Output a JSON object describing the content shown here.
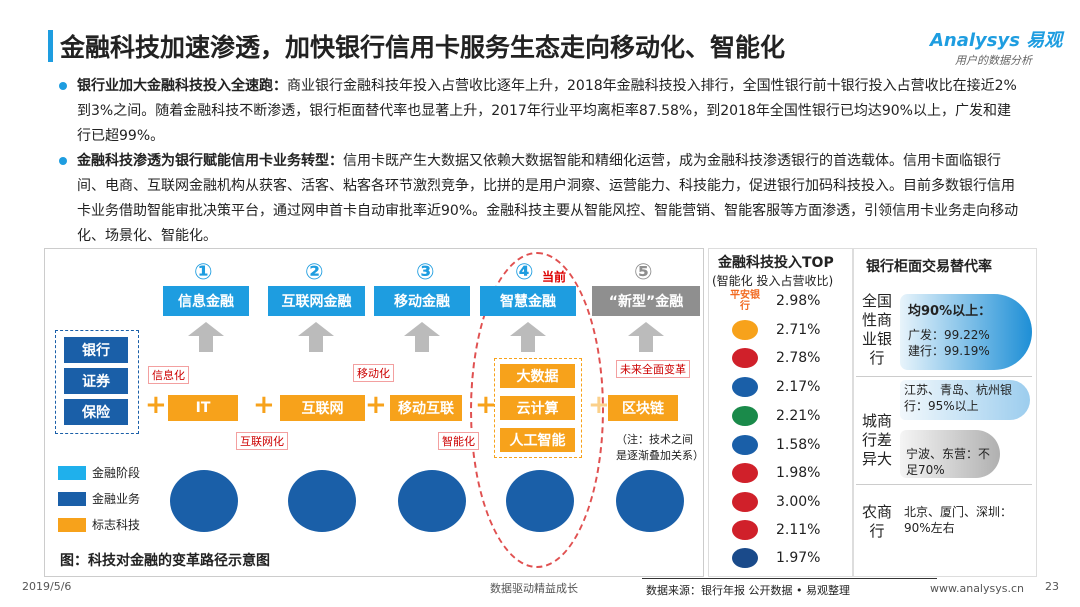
{
  "header": {
    "title": "金融科技加速渗透，加快银行信用卡服务生态走向移动化、智能化",
    "brand": "Analysys",
    "brand_cn": "易观",
    "tagline": "用户的数据分析"
  },
  "bullets": [
    {
      "lead": "银行业加大金融科技投入全速跑：",
      "text": "商业银行金融科技年投入占营收比逐年上升，2018年金融科技投入排行，全国性银行前十银行投入占营收比在接近2%到3%之间。随着金融科技不断渗透，银行柜面替代率也显著上升，2017年行业平均离柜率87.58%，到2018年全国性银行已均达90%以上，广发和建行已超99%。"
    },
    {
      "lead": "金融科技渗透为银行赋能信用卡业务转型：",
      "text": "信用卡既产生大数据又依赖大数据智能和精细化运营，成为金融科技渗透银行的首选载体。信用卡面临银行间、电商、互联网金融机构从获客、活客、粘客各环节激烈竞争，比拼的是用户洞察、运营能力、科技能力，促进银行加码科技投入。目前多数银行信用卡业务借助智能审批决策平台，通过网申首卡自动审批率近90%。金融科技主要从智能风控、智能营销、智能客服等方面渗透，引领信用卡业务走向移动化、场景化、智能化。"
    }
  ],
  "diagram": {
    "stages": [
      {
        "num": "①",
        "label": "信息金融"
      },
      {
        "num": "②",
        "label": "互联网金融"
      },
      {
        "num": "③",
        "label": "移动金融"
      },
      {
        "num": "④",
        "label": "智慧金融"
      },
      {
        "num": "⑤",
        "label": "“新型”金融"
      }
    ],
    "current": "当前",
    "businesses": [
      "银行",
      "证券",
      "保险"
    ],
    "techs": [
      "IT",
      "互联网",
      "移动互联",
      "大数据",
      "云计算",
      "人工智能",
      "区块链"
    ],
    "transitions": [
      "信息化",
      "互联网化",
      "移动化",
      "智能化",
      "未来全面变革"
    ],
    "note": [
      "（注：技术之间",
      "是逐渐叠加关系）"
    ],
    "legend": [
      "金融阶段",
      "金融业务",
      "标志科技"
    ],
    "caption": "图：科技对金融的变革路径示意图"
  },
  "top": {
    "title": "金融科技投入TOP",
    "subtitle": "(智能化 投入占营收比)",
    "logo_text": "平安银行",
    "values": [
      "2.98%",
      "2.71%",
      "2.78%",
      "2.17%",
      "2.21%",
      "1.58%",
      "1.98%",
      "3.00%",
      "2.11%",
      "1.97%"
    ]
  },
  "substitution": {
    "title": "银行柜面交易替代率",
    "groups": [
      {
        "name": "全国性商业银行",
        "lines": [
          "均90%以上：",
          "广发：99.22%",
          "建行：99.19%"
        ]
      },
      {
        "name": "城商行差异大",
        "lines": [
          "江苏、青岛、杭州银行：95%以上",
          "宁波、东营：不足70%"
        ]
      },
      {
        "name": "农商行",
        "lines": [
          "北京、厦门、深圳：90%左右"
        ]
      }
    ]
  },
  "footer": {
    "date": "2019/5/6",
    "slogan": "数据驱动精益成长",
    "source": "数据来源：银行年报 公开数据 • 易观整理",
    "url": "www.analysys.cn",
    "page": "23"
  }
}
